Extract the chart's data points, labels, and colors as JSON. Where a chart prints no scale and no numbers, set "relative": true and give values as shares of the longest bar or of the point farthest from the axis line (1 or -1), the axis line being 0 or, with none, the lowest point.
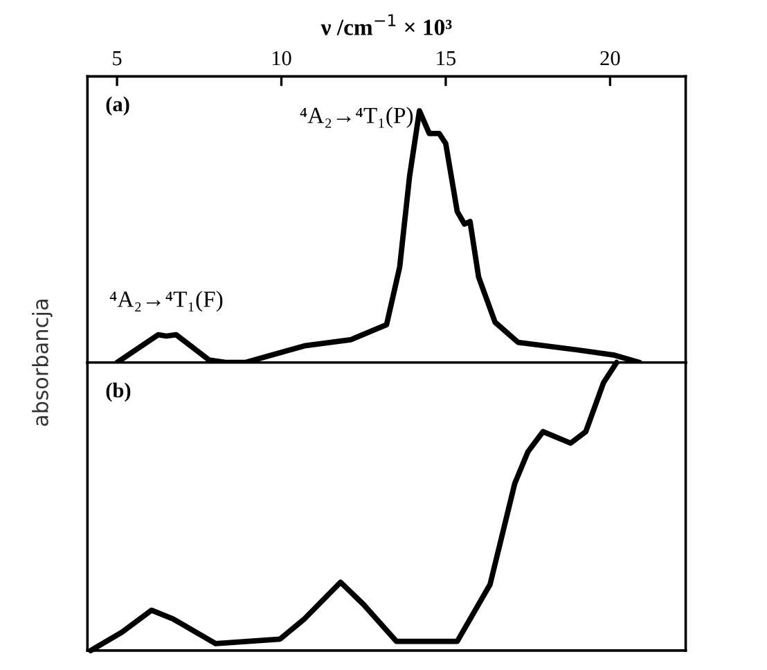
{
  "chart_data": [
    {
      "type": "line",
      "xlabel": "ν /cm$^{−1}$ × 10³",
      "ylabel": "absorbancja",
      "relative": true,
      "xlim": [
        4.1,
        22.3
      ],
      "xticks": [
        5,
        10,
        15,
        20
      ],
      "tick_labels": "x",
      "legend": false,
      "grid": false,
      "marker": "none",
      "line_style": "solid",
      "annotations": [
        "(a)",
        {
          "text": "⁴A₂→⁴T₁(P)",
          "x": 14.2,
          "y": 1.0
        },
        {
          "text": "⁴A₂→⁴T₁(F)",
          "x": 6.5,
          "y": 0.11
        }
      ],
      "series": [
        {
          "color": "#000000",
          "x": [
            5.0,
            6.25,
            6.5,
            6.8,
            7.8,
            8.3,
            8.9,
            10.7,
            12.1,
            13.2,
            13.6,
            13.9,
            14.2,
            14.5,
            14.8,
            15.0,
            15.35,
            15.57,
            15.74,
            16.0,
            16.5,
            17.2,
            19.0,
            20.1,
            20.9
          ],
          "values": [
            0,
            0.11,
            0.105,
            0.11,
            0.01,
            0,
            0,
            0.066,
            0.09,
            0.15,
            0.38,
            0.74,
            1.0,
            0.91,
            0.91,
            0.87,
            0.6,
            0.55,
            0.56,
            0.34,
            0.16,
            0.08,
            0.05,
            0.03,
            0
          ]
        }
      ]
    },
    {
      "type": "line",
      "relative": true,
      "xlim": [
        4.1,
        22.3
      ],
      "tick_labels": false,
      "legend": false,
      "grid": false,
      "marker": "none",
      "line_style": "solid",
      "annotations": [
        "(b)"
      ],
      "series": [
        {
          "color": "#000000",
          "x": [
            4.2,
            5.15,
            6.05,
            6.7,
            8.0,
            9.96,
            10.7,
            11.8,
            12.5,
            13.5,
            15.35,
            16.35,
            17.1,
            17.5,
            17.96,
            18.8,
            19.26,
            19.8,
            20.2
          ],
          "values": [
            0,
            0.064,
            0.14,
            0.11,
            0.024,
            0.04,
            0.11,
            0.237,
            0.16,
            0.032,
            0.032,
            0.23,
            0.58,
            0.69,
            0.76,
            0.72,
            0.76,
            0.93,
            1.0
          ]
        }
      ]
    }
  ]
}
